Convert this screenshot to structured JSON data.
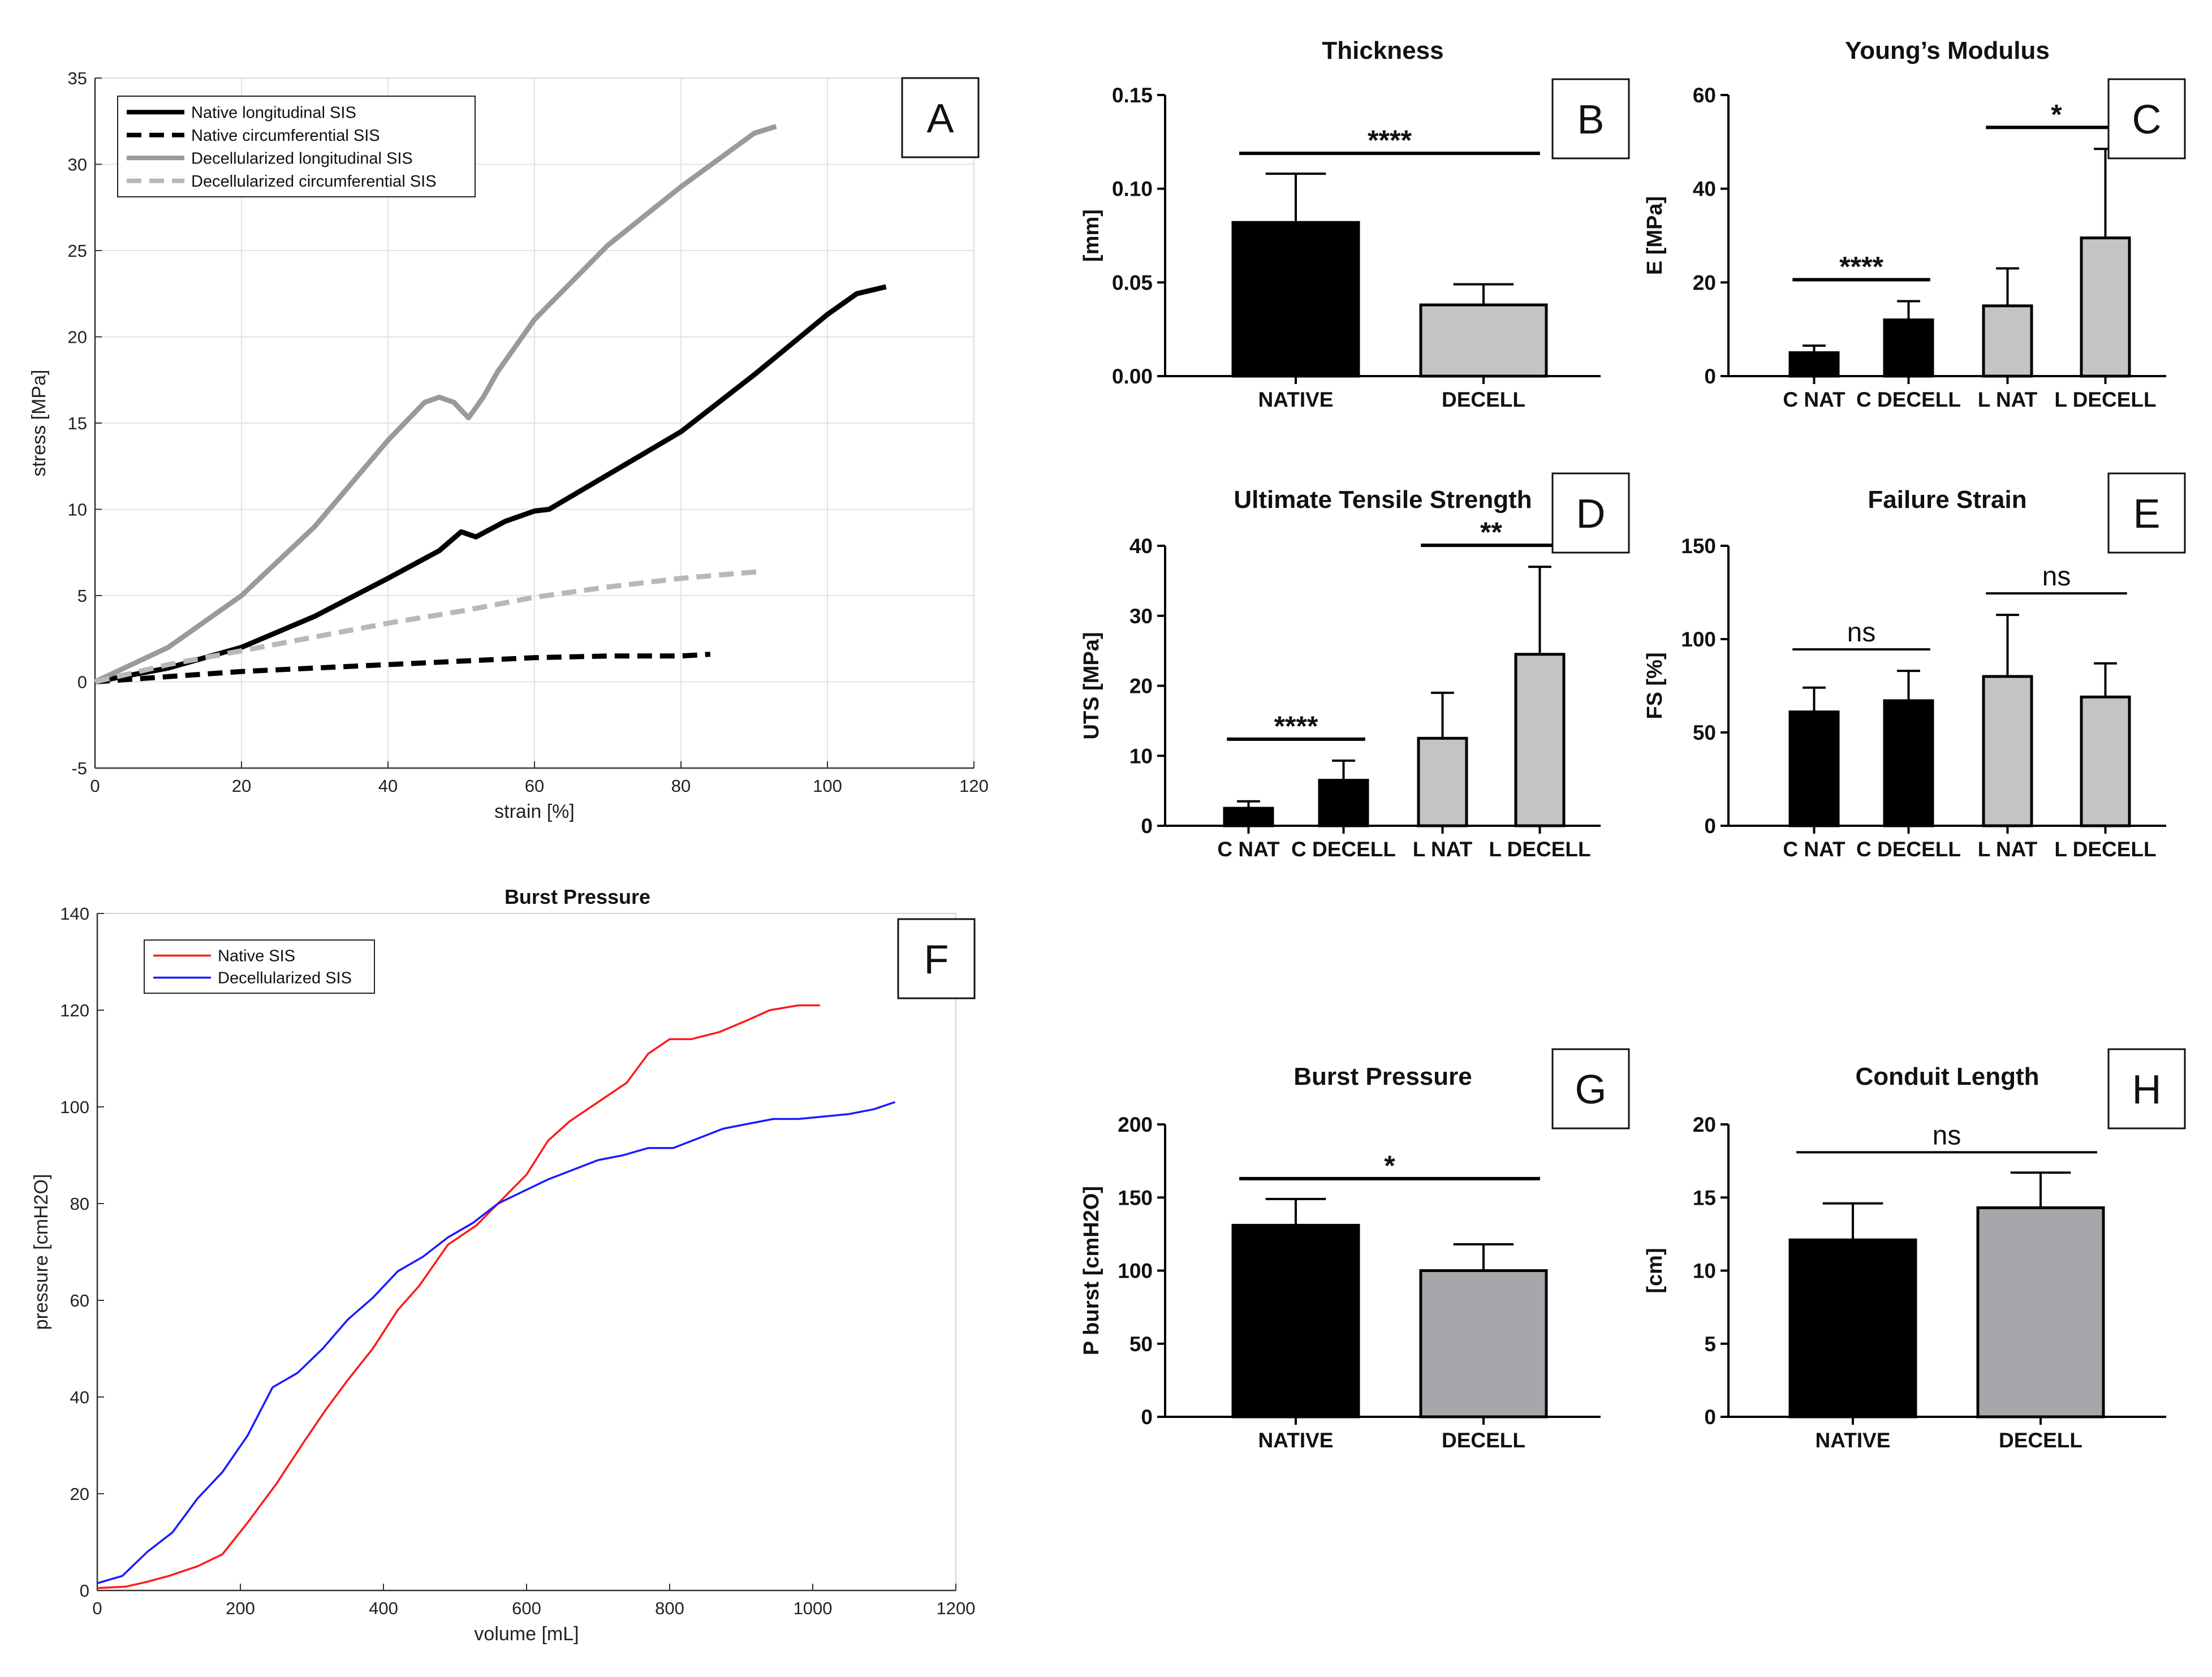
{
  "figure": "multi-panel mechanical testing figure",
  "chart_data": [
    {
      "id": "A",
      "type": "line",
      "panel_label": "A",
      "title": "",
      "xlabel": "strain [%]",
      "ylabel": "stress [MPa]",
      "xlim": [
        0,
        120
      ],
      "ylim": [
        -5,
        35
      ],
      "xticks": [
        0,
        20,
        40,
        60,
        80,
        100,
        120
      ],
      "yticks": [
        -5,
        0,
        5,
        10,
        15,
        20,
        25,
        30,
        35
      ],
      "grid": true,
      "legend": "top-left",
      "series": [
        {
          "name": "Native longitudinal SIS",
          "color": "#000000",
          "dash": "solid",
          "x": [
            0,
            10,
            20,
            30,
            40,
            47,
            50,
            52,
            56,
            60,
            62,
            70,
            80,
            90,
            100,
            104,
            108
          ],
          "y": [
            0,
            0.8,
            2,
            3.8,
            6,
            7.6,
            8.7,
            8.4,
            9.3,
            9.9,
            10,
            12,
            14.5,
            17.8,
            21.3,
            22.5,
            22.9
          ]
        },
        {
          "name": "Native circumferential SIS",
          "color": "#000000",
          "dash": "dashed",
          "x": [
            0,
            10,
            20,
            30,
            40,
            50,
            60,
            70,
            80,
            84
          ],
          "y": [
            0,
            0.3,
            0.6,
            0.8,
            1.0,
            1.2,
            1.4,
            1.5,
            1.5,
            1.6
          ]
        },
        {
          "name": "Decellularized longitudinal SIS",
          "color": "#9a9a9a",
          "dash": "solid",
          "x": [
            0,
            10,
            20,
            30,
            40,
            45,
            47,
            49,
            51,
            53,
            55,
            60,
            70,
            80,
            90,
            93
          ],
          "y": [
            0,
            2,
            5,
            9,
            14,
            16.2,
            16.5,
            16.2,
            15.3,
            16.5,
            18,
            21,
            25.3,
            28.7,
            31.8,
            32.2
          ]
        },
        {
          "name": "Decellularized circumferential SIS",
          "color": "#b8b8b8",
          "dash": "dashed",
          "x": [
            0,
            10,
            20,
            30,
            40,
            50,
            60,
            70,
            80,
            91
          ],
          "y": [
            0,
            1,
            1.8,
            2.6,
            3.4,
            4.1,
            4.9,
            5.5,
            6.0,
            6.4
          ]
        }
      ]
    },
    {
      "id": "B",
      "type": "bar",
      "panel_label": "B",
      "title": "Thickness",
      "ylabel": "[mm]",
      "ylim": [
        0,
        0.15
      ],
      "yticks": [
        "0.00",
        "0.05",
        "0.10",
        "0.15"
      ],
      "categories": [
        "NATIVE",
        "DECELL"
      ],
      "values": [
        0.082,
        0.038
      ],
      "errors": [
        0.026,
        0.011
      ],
      "colors": [
        "#000000",
        "#c4c4c4"
      ],
      "significance": [
        {
          "from": 0,
          "to": 1,
          "label": "****"
        }
      ]
    },
    {
      "id": "C",
      "type": "bar",
      "panel_label": "C",
      "title": "Young’s Modulus",
      "ylabel": "E [MPa]",
      "ylim": [
        0,
        60
      ],
      "yticks": [
        "0",
        "20",
        "40",
        "60"
      ],
      "categories": [
        "C NAT",
        "C DECELL",
        "L NAT",
        "L DECELL"
      ],
      "values": [
        5,
        12,
        15,
        29.5
      ],
      "errors": [
        1.5,
        4,
        8,
        19
      ],
      "colors": [
        "#000000",
        "#000000",
        "#c4c4c4",
        "#c4c4c4"
      ],
      "significance": [
        {
          "from": 0,
          "to": 1,
          "label": "****"
        },
        {
          "from": 2,
          "to": 3,
          "label": "*"
        }
      ]
    },
    {
      "id": "D",
      "type": "bar",
      "panel_label": "D",
      "title": "Ultimate Tensile Strength",
      "ylabel": "UTS [MPa]",
      "ylim": [
        0,
        40
      ],
      "yticks": [
        "0",
        "10",
        "20",
        "30",
        "40"
      ],
      "categories": [
        "C NAT",
        "C DECELL",
        "L NAT",
        "L DECELL"
      ],
      "values": [
        2.5,
        6.5,
        12.5,
        24.5
      ],
      "errors": [
        1,
        2.8,
        6.5,
        12.5
      ],
      "colors": [
        "#000000",
        "#000000",
        "#c4c4c4",
        "#c4c4c4"
      ],
      "significance": [
        {
          "from": 0,
          "to": 1,
          "label": "****"
        },
        {
          "from": 2,
          "to": 3,
          "label": "**"
        }
      ]
    },
    {
      "id": "E",
      "type": "bar",
      "panel_label": "E",
      "title": "Failure Strain",
      "ylabel": "FS [%]",
      "ylim": [
        0,
        150
      ],
      "yticks": [
        "0",
        "50",
        "100",
        "150"
      ],
      "categories": [
        "C NAT",
        "C DECELL",
        "L NAT",
        "L DECELL"
      ],
      "values": [
        61,
        67,
        80,
        69
      ],
      "errors": [
        13,
        16,
        33,
        18
      ],
      "colors": [
        "#000000",
        "#000000",
        "#c4c4c4",
        "#c4c4c4"
      ],
      "significance": [
        {
          "from": 0,
          "to": 1,
          "label": "ns"
        },
        {
          "from": 2,
          "to": 3,
          "label": "ns"
        }
      ]
    },
    {
      "id": "F",
      "type": "line",
      "panel_label": "F",
      "title": "Burst Pressure",
      "xlabel": "volume [mL]",
      "ylabel": "pressure [cmH2O]",
      "xlim": [
        0,
        1200
      ],
      "ylim": [
        0,
        140
      ],
      "xticks": [
        0,
        200,
        400,
        600,
        800,
        1000,
        1200
      ],
      "yticks": [
        0,
        20,
        40,
        60,
        80,
        100,
        120,
        140
      ],
      "grid": false,
      "legend": "top-left",
      "series": [
        {
          "name": "Native SIS",
          "color": "#ff1a1a",
          "dash": "solid",
          "x": [
            0,
            40,
            70,
            100,
            140,
            175,
            210,
            250,
            290,
            320,
            350,
            385,
            420,
            450,
            490,
            530,
            560,
            600,
            630,
            660,
            700,
            740,
            770,
            800,
            830,
            870,
            910,
            940,
            980,
            1010
          ],
          "y": [
            0.5,
            0.8,
            1.8,
            3,
            5,
            7.5,
            14,
            22,
            31,
            37.5,
            43.5,
            50,
            58,
            63,
            71.5,
            75.5,
            80,
            86,
            93,
            97,
            101,
            105,
            111,
            114,
            114,
            115.5,
            118,
            120,
            121,
            121
          ]
        },
        {
          "name": "Decellularized SIS",
          "color": "#1a1aff",
          "dash": "solid",
          "x": [
            0,
            35,
            70,
            105,
            140,
            175,
            210,
            245,
            280,
            315,
            350,
            385,
            420,
            455,
            490,
            525,
            560,
            595,
            630,
            665,
            700,
            735,
            770,
            805,
            840,
            875,
            910,
            945,
            980,
            1015,
            1050,
            1085,
            1115
          ],
          "y": [
            1.5,
            3,
            8,
            12,
            19,
            24.5,
            32,
            42,
            45,
            50,
            56,
            60.5,
            66,
            69,
            73,
            76,
            80,
            82.5,
            85,
            87,
            89,
            90,
            91.5,
            91.5,
            93.5,
            95.5,
            96.5,
            97.5,
            97.5,
            98,
            98.5,
            99.5,
            101
          ]
        }
      ]
    },
    {
      "id": "G",
      "type": "bar",
      "panel_label": "G",
      "title": "Burst Pressure",
      "ylabel": "P burst [cmH2O]",
      "ylim": [
        0,
        200
      ],
      "yticks": [
        "0",
        "50",
        "100",
        "150",
        "200"
      ],
      "categories": [
        "NATIVE",
        "DECELL"
      ],
      "values": [
        131,
        100
      ],
      "errors": [
        18,
        18
      ],
      "colors": [
        "#000000",
        "#a6a7ab"
      ],
      "significance": [
        {
          "from": 0,
          "to": 1,
          "label": "*"
        }
      ]
    },
    {
      "id": "H",
      "type": "bar",
      "panel_label": "H",
      "title": "Conduit Length",
      "ylabel": "[cm]",
      "ylim": [
        0,
        20
      ],
      "yticks": [
        "0",
        "5",
        "10",
        "15",
        "20"
      ],
      "categories": [
        "NATIVE",
        "DECELL"
      ],
      "values": [
        12.1,
        14.3
      ],
      "errors": [
        2.5,
        2.4
      ],
      "colors": [
        "#000000",
        "#a6a7ab"
      ],
      "significance": [
        {
          "from": 0,
          "to": 1,
          "label": "ns"
        }
      ]
    }
  ]
}
